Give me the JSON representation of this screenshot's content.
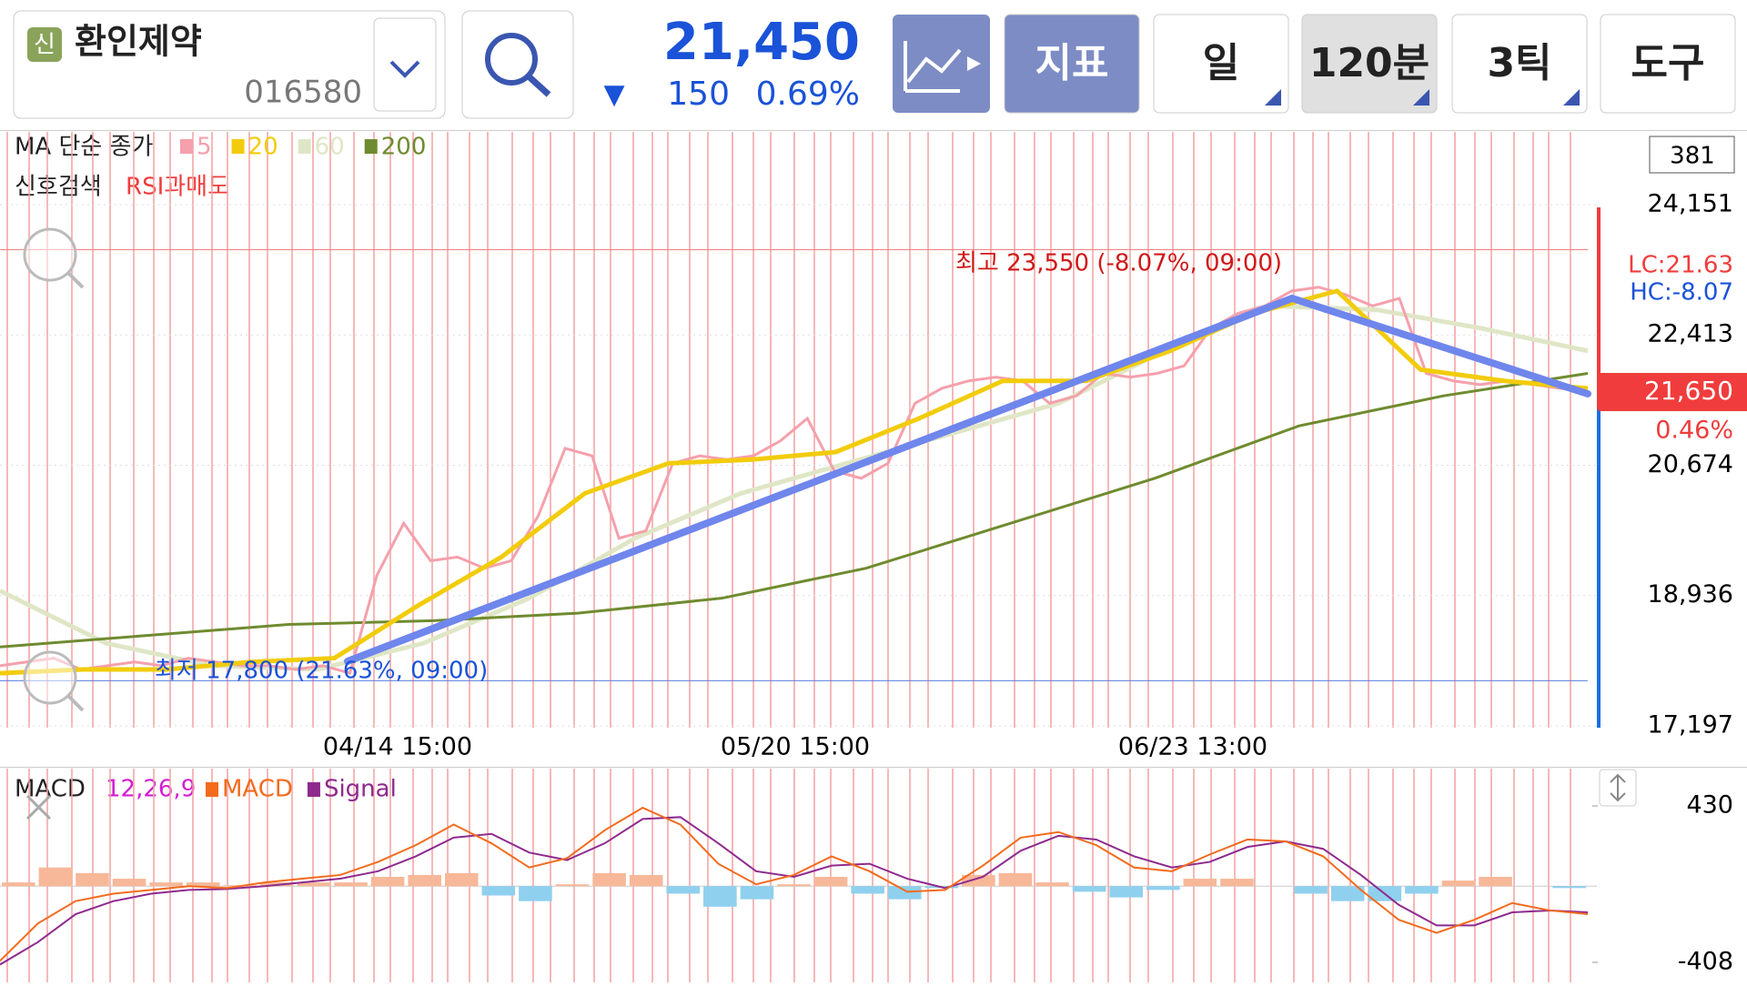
{
  "header": {
    "badge": "신",
    "name": "환인제약",
    "code": "016580",
    "price": "21,450",
    "arrow": "▼",
    "change": "150",
    "change_pct": "0.69%",
    "buttons": [
      "지표",
      "일",
      "120분",
      "3틱",
      "도구"
    ]
  },
  "main_chart": {
    "legend_title": "MA 단순 종가",
    "signal_label": "신호검색",
    "signal_name": "RSI과매도",
    "count": "381",
    "lc": "LC:21.63",
    "hc": "HC:-8.07",
    "current": "21,650",
    "current_pct": "0.46%",
    "ylim": [
      17197,
      24151
    ],
    "yticks": [
      {
        "value": 24151,
        "label": "24,151"
      },
      {
        "value": 22413,
        "label": "22,413"
      },
      {
        "value": 20674,
        "label": "20,674"
      },
      {
        "value": 18936,
        "label": "18,936"
      },
      {
        "value": 17197,
        "label": "17,197"
      }
    ],
    "xticks": [
      "04/14 15:00",
      "05/20 15:00",
      "06/23 13:00"
    ],
    "high": {
      "label": "최고 23,550 (-8.07%, 09:00)",
      "value": 23550
    },
    "low": {
      "label": "최저 17,800 (21.63%, 09:00)",
      "value": 17800
    },
    "series": [
      {
        "name": "5",
        "color": "#f5a0ac",
        "values": [
          18000,
          18050,
          18100,
          17950,
          18000,
          18050,
          18000,
          18100,
          18050,
          18000,
          18000,
          17950,
          18000,
          17900,
          19200,
          19900,
          19400,
          19450,
          19300,
          19400,
          20000,
          20900,
          20800,
          19700,
          19800,
          20700,
          20800,
          20750,
          20800,
          21000,
          21300,
          20600,
          20500,
          20700,
          21500,
          21700,
          21800,
          21850,
          21800,
          21500,
          21600,
          21900,
          21850,
          21900,
          22000,
          22500,
          22700,
          22800,
          23000,
          23050,
          22950,
          22800,
          22900,
          21900,
          21800,
          21750,
          21800,
          21750,
          21700,
          21650
        ]
      },
      {
        "name": "20",
        "color": "#f2cc0c",
        "values": [
          17900,
          17950,
          17950,
          18050,
          18100,
          18800,
          19450,
          20300,
          20700,
          20750,
          20850,
          21300,
          21800,
          21800,
          22200,
          22700,
          23000,
          21950,
          21800,
          21700
        ]
      },
      {
        "name": "60",
        "color": "#dfe6c6",
        "values": [
          19000,
          18300,
          18000,
          17950,
          18300,
          18900,
          19700,
          20300,
          20700,
          21100,
          21500,
          22200,
          22800,
          22750,
          22500,
          22200
        ]
      },
      {
        "name": "200",
        "color": "#6f8b2f",
        "values": [
          18250,
          18400,
          18550,
          18600,
          18700,
          18900,
          19300,
          19900,
          20500,
          21200,
          21600,
          21900
        ]
      }
    ]
  },
  "macd": {
    "label": "MACD",
    "params": "12,26,9",
    "ylim": [
      -408,
      430
    ],
    "yticks": [
      430,
      -408
    ],
    "series": [
      {
        "name": "MACD",
        "color": "#f26b1d",
        "values": [
          -400,
          -200,
          -80,
          -40,
          -20,
          0,
          -10,
          20,
          40,
          60,
          130,
          220,
          330,
          230,
          100,
          150,
          300,
          420,
          330,
          120,
          10,
          60,
          160,
          80,
          -30,
          -20,
          110,
          260,
          290,
          220,
          100,
          80,
          170,
          250,
          240,
          160,
          -20,
          -180,
          -250,
          -180,
          -90,
          -130,
          -150
        ]
      },
      {
        "name": "Signal",
        "color": "#8e2a8e",
        "values": [
          -420,
          -300,
          -150,
          -80,
          -40,
          -20,
          -15,
          0,
          20,
          40,
          80,
          160,
          260,
          280,
          180,
          140,
          230,
          360,
          370,
          230,
          80,
          50,
          110,
          120,
          40,
          -10,
          50,
          190,
          270,
          250,
          160,
          100,
          130,
          210,
          240,
          200,
          60,
          -100,
          -210,
          -210,
          -140,
          -130,
          -140
        ]
      },
      {
        "name": "histogram",
        "values": [
          20,
          100,
          70,
          40,
          20,
          20,
          5,
          20,
          20,
          20,
          50,
          60,
          70,
          -50,
          -80,
          10,
          70,
          60,
          -40,
          -110,
          -70,
          10,
          50,
          -40,
          -70,
          -10,
          60,
          70,
          20,
          -30,
          -60,
          -20,
          40,
          40,
          0,
          -40,
          -80,
          -80,
          -40,
          30,
          50,
          0,
          -10
        ]
      }
    ]
  }
}
